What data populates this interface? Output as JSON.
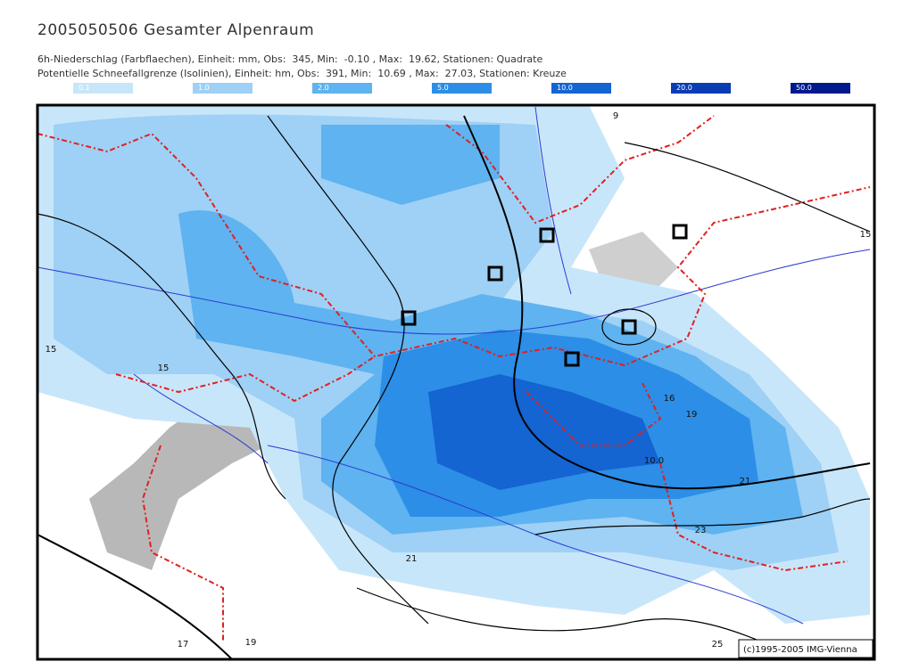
{
  "header": {
    "title": "2005050506 Gesamter Alpenraum",
    "line1": "6h-Niederschlag (Farbflaechen), Einheit: mm, Obs:  345, Min:  -0.10 , Max:  19.62, Stationen: Quadrate",
    "line2": "Potentielle Schneefallgrenze (Isolinien), Einheit: hm, Obs:  391, Min:  10.69 , Max:  27.03, Stationen: Kreuze"
  },
  "legend": [
    {
      "label": "0.1",
      "color": "#c8e6fa"
    },
    {
      "label": "1.0",
      "color": "#9fd0f5"
    },
    {
      "label": "2.0",
      "color": "#5eb3f0"
    },
    {
      "label": "5.0",
      "color": "#2c8ee6"
    },
    {
      "label": "10.0",
      "color": "#1464d2"
    },
    {
      "label": "20.0",
      "color": "#0a3cb4"
    },
    {
      "label": "50.0",
      "color": "#001a8c"
    }
  ],
  "contour_labels": [
    "15",
    "15",
    "16",
    "19",
    "10.0",
    "21",
    "23",
    "21",
    "25",
    "17",
    "19",
    "9",
    "15"
  ],
  "copyright": "(c)1995-2005 IMG-Vienna"
}
